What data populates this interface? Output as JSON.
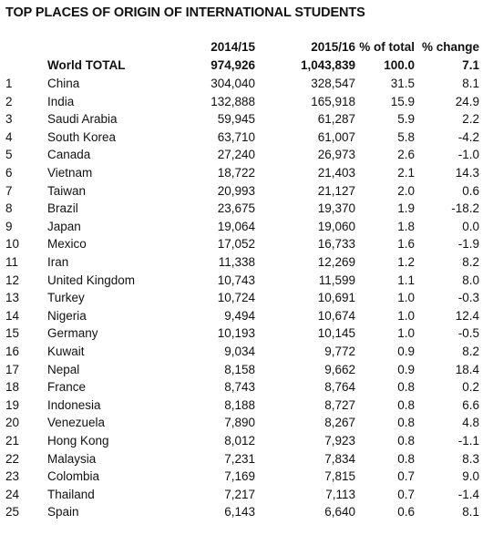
{
  "chart_data": {
    "type": "table",
    "title": "TOP PLACES OF ORIGIN OF INTERNATIONAL STUDENTS",
    "columns": [
      "",
      "",
      "2014/15",
      "2015/16",
      "% of total",
      "% change"
    ],
    "total": {
      "label": "World TOTAL",
      "y2014_15": "974,926",
      "y2015_16": "1,043,839",
      "pct_total": "100.0",
      "pct_change": "7.1"
    },
    "rows": [
      {
        "rank": "1",
        "place": "China",
        "y2014_15": "304,040",
        "y2015_16": "328,547",
        "pct_total": "31.5",
        "pct_change": "8.1"
      },
      {
        "rank": "2",
        "place": "India",
        "y2014_15": "132,888",
        "y2015_16": "165,918",
        "pct_total": "15.9",
        "pct_change": "24.9"
      },
      {
        "rank": "3",
        "place": "Saudi Arabia",
        "y2014_15": "59,945",
        "y2015_16": "61,287",
        "pct_total": "5.9",
        "pct_change": "2.2"
      },
      {
        "rank": "4",
        "place": "South Korea",
        "y2014_15": "63,710",
        "y2015_16": "61,007",
        "pct_total": "5.8",
        "pct_change": "-4.2"
      },
      {
        "rank": "5",
        "place": "Canada",
        "y2014_15": "27,240",
        "y2015_16": "26,973",
        "pct_total": "2.6",
        "pct_change": "-1.0"
      },
      {
        "rank": "6",
        "place": "Vietnam",
        "y2014_15": "18,722",
        "y2015_16": "21,403",
        "pct_total": "2.1",
        "pct_change": "14.3"
      },
      {
        "rank": "7",
        "place": "Taiwan",
        "y2014_15": "20,993",
        "y2015_16": "21,127",
        "pct_total": "2.0",
        "pct_change": "0.6"
      },
      {
        "rank": "8",
        "place": "Brazil",
        "y2014_15": "23,675",
        "y2015_16": "19,370",
        "pct_total": "1.9",
        "pct_change": "-18.2"
      },
      {
        "rank": "9",
        "place": "Japan",
        "y2014_15": "19,064",
        "y2015_16": "19,060",
        "pct_total": "1.8",
        "pct_change": "0.0"
      },
      {
        "rank": "10",
        "place": "Mexico",
        "y2014_15": "17,052",
        "y2015_16": "16,733",
        "pct_total": "1.6",
        "pct_change": "-1.9"
      },
      {
        "rank": "11",
        "place": "Iran",
        "y2014_15": "11,338",
        "y2015_16": "12,269",
        "pct_total": "1.2",
        "pct_change": "8.2"
      },
      {
        "rank": "12",
        "place": "United Kingdom",
        "y2014_15": "10,743",
        "y2015_16": "11,599",
        "pct_total": "1.1",
        "pct_change": "8.0"
      },
      {
        "rank": "13",
        "place": "Turkey",
        "y2014_15": "10,724",
        "y2015_16": "10,691",
        "pct_total": "1.0",
        "pct_change": "-0.3"
      },
      {
        "rank": "14",
        "place": "Nigeria",
        "y2014_15": "9,494",
        "y2015_16": "10,674",
        "pct_total": "1.0",
        "pct_change": "12.4"
      },
      {
        "rank": "15",
        "place": "Germany",
        "y2014_15": "10,193",
        "y2015_16": "10,145",
        "pct_total": "1.0",
        "pct_change": "-0.5"
      },
      {
        "rank": "16",
        "place": "Kuwait",
        "y2014_15": "9,034",
        "y2015_16": "9,772",
        "pct_total": "0.9",
        "pct_change": "8.2"
      },
      {
        "rank": "17",
        "place": "Nepal",
        "y2014_15": "8,158",
        "y2015_16": "9,662",
        "pct_total": "0.9",
        "pct_change": "18.4"
      },
      {
        "rank": "18",
        "place": "France",
        "y2014_15": "8,743",
        "y2015_16": "8,764",
        "pct_total": "0.8",
        "pct_change": "0.2"
      },
      {
        "rank": "19",
        "place": "Indonesia",
        "y2014_15": "8,188",
        "y2015_16": "8,727",
        "pct_total": "0.8",
        "pct_change": "6.6"
      },
      {
        "rank": "20",
        "place": "Venezuela",
        "y2014_15": "7,890",
        "y2015_16": "8,267",
        "pct_total": "0.8",
        "pct_change": "4.8"
      },
      {
        "rank": "21",
        "place": "Hong Kong",
        "y2014_15": "8,012",
        "y2015_16": "7,923",
        "pct_total": "0.8",
        "pct_change": "-1.1"
      },
      {
        "rank": "22",
        "place": "Malaysia",
        "y2014_15": "7,231",
        "y2015_16": "7,834",
        "pct_total": "0.8",
        "pct_change": "8.3"
      },
      {
        "rank": "23",
        "place": "Colombia",
        "y2014_15": "7,169",
        "y2015_16": "7,815",
        "pct_total": "0.7",
        "pct_change": "9.0"
      },
      {
        "rank": "24",
        "place": "Thailand",
        "y2014_15": "7,217",
        "y2015_16": "7,113",
        "pct_total": "0.7",
        "pct_change": "-1.4"
      },
      {
        "rank": "25",
        "place": "Spain",
        "y2014_15": "6,143",
        "y2015_16": "6,640",
        "pct_total": "0.6",
        "pct_change": "8.1"
      }
    ]
  }
}
